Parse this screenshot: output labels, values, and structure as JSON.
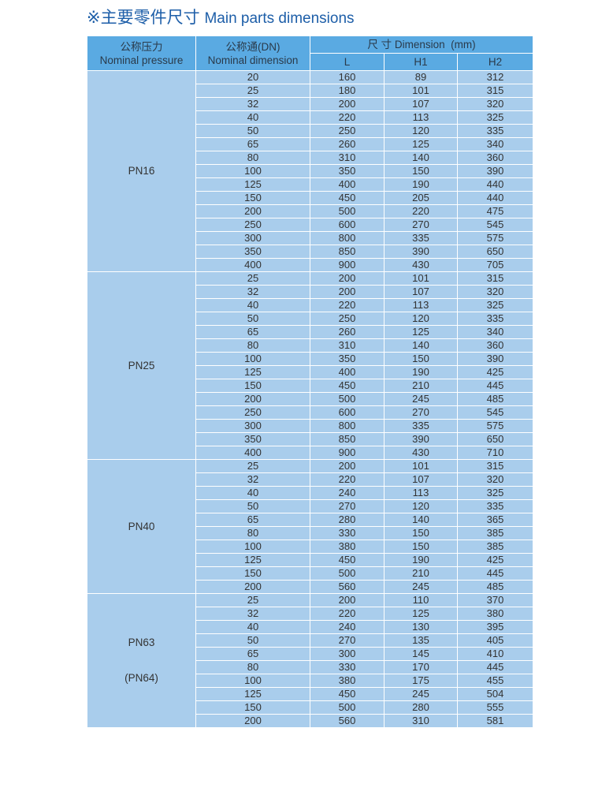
{
  "title": {
    "symbol": "※",
    "zh": "主要零件尺寸",
    "en": "Main parts dimensions"
  },
  "table": {
    "headers": {
      "pressure_zh": "公称压力",
      "pressure_en": "Nominal pressure",
      "dn_zh": "公称通(DN)",
      "dn_en": "Nominal dimension",
      "dimension": "尺 寸 Dimension  (mm)",
      "L": "L",
      "H1": "H1",
      "H2": "H2"
    },
    "groups": [
      {
        "pressure": [
          "PN16"
        ],
        "rows": [
          [
            "20",
            "160",
            "89",
            "312"
          ],
          [
            "25",
            "180",
            "101",
            "315"
          ],
          [
            "32",
            "200",
            "107",
            "320"
          ],
          [
            "40",
            "220",
            "113",
            "325"
          ],
          [
            "50",
            "250",
            "120",
            "335"
          ],
          [
            "65",
            "260",
            "125",
            "340"
          ],
          [
            "80",
            "310",
            "140",
            "360"
          ],
          [
            "100",
            "350",
            "150",
            "390"
          ],
          [
            "125",
            "400",
            "190",
            "440"
          ],
          [
            "150",
            "450",
            "205",
            "440"
          ],
          [
            "200",
            "500",
            "220",
            "475"
          ],
          [
            "250",
            "600",
            "270",
            "545"
          ],
          [
            "300",
            "800",
            "335",
            "575"
          ],
          [
            "350",
            "850",
            "390",
            "650"
          ],
          [
            "400",
            "900",
            "430",
            "705"
          ]
        ]
      },
      {
        "pressure": [
          "PN25"
        ],
        "rows": [
          [
            "25",
            "200",
            "101",
            "315"
          ],
          [
            "32",
            "200",
            "107",
            "320"
          ],
          [
            "40",
            "220",
            "113",
            "325"
          ],
          [
            "50",
            "250",
            "120",
            "335"
          ],
          [
            "65",
            "260",
            "125",
            "340"
          ],
          [
            "80",
            "310",
            "140",
            "360"
          ],
          [
            "100",
            "350",
            "150",
            "390"
          ],
          [
            "125",
            "400",
            "190",
            "425"
          ],
          [
            "150",
            "450",
            "210",
            "445"
          ],
          [
            "200",
            "500",
            "245",
            "485"
          ],
          [
            "250",
            "600",
            "270",
            "545"
          ],
          [
            "300",
            "800",
            "335",
            "575"
          ],
          [
            "350",
            "850",
            "390",
            "650"
          ],
          [
            "400",
            "900",
            "430",
            "710"
          ]
        ]
      },
      {
        "pressure": [
          "PN40"
        ],
        "rows": [
          [
            "25",
            "200",
            "101",
            "315"
          ],
          [
            "32",
            "220",
            "107",
            "320"
          ],
          [
            "40",
            "240",
            "113",
            "325"
          ],
          [
            "50",
            "270",
            "120",
            "335"
          ],
          [
            "65",
            "280",
            "140",
            "365"
          ],
          [
            "80",
            "330",
            "150",
            "385"
          ],
          [
            "100",
            "380",
            "150",
            "385"
          ],
          [
            "125",
            "450",
            "190",
            "425"
          ],
          [
            "150",
            "500",
            "210",
            "445"
          ],
          [
            "200",
            "560",
            "245",
            "485"
          ]
        ]
      },
      {
        "pressure": [
          "PN63",
          "(PN64)"
        ],
        "rows": [
          [
            "25",
            "200",
            "110",
            "370"
          ],
          [
            "32",
            "220",
            "125",
            "380"
          ],
          [
            "40",
            "240",
            "130",
            "395"
          ],
          [
            "50",
            "270",
            "135",
            "405"
          ],
          [
            "65",
            "300",
            "145",
            "410"
          ],
          [
            "80",
            "330",
            "170",
            "445"
          ],
          [
            "100",
            "380",
            "175",
            "455"
          ],
          [
            "125",
            "450",
            "245",
            "504"
          ],
          [
            "150",
            "500",
            "280",
            "555"
          ],
          [
            "200",
            "560",
            "310",
            "581"
          ]
        ]
      }
    ]
  }
}
